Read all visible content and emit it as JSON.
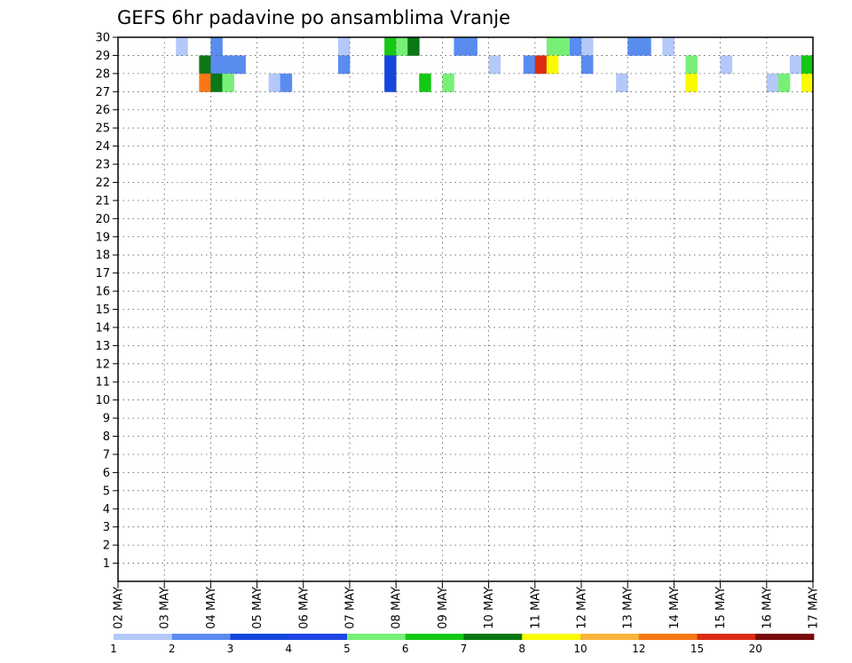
{
  "chart_data": {
    "type": "heatmap",
    "title": "GEFS 6hr padavine po ansamblima Vranje",
    "xlabel": "",
    "ylabel": "",
    "x_tick_labels": [
      "02 MAY",
      "03 MAY",
      "04 MAY",
      "05 MAY",
      "06 MAY",
      "07 MAY",
      "08 MAY",
      "09 MAY",
      "10 MAY",
      "11 MAY",
      "12 MAY",
      "13 MAY",
      "14 MAY",
      "15 MAY",
      "16 MAY",
      "17 MAY"
    ],
    "y_tick_labels": [
      "1",
      "2",
      "3",
      "4",
      "5",
      "6",
      "7",
      "8",
      "9",
      "10",
      "11",
      "12",
      "13",
      "14",
      "15",
      "16",
      "17",
      "18",
      "19",
      "20",
      "21",
      "22",
      "23",
      "24",
      "25",
      "26",
      "27",
      "28",
      "29",
      "30"
    ],
    "xlim": [
      0,
      60
    ],
    "ylim": [
      0,
      30
    ],
    "grid": true,
    "colorbar": {
      "position": "bottom",
      "levels": [
        "1",
        "2",
        "3",
        "4",
        "5",
        "6",
        "7",
        "8",
        "10",
        "12",
        "15",
        "20"
      ],
      "colors": [
        "#b4c8fa",
        "#5a8cf0",
        "#1446dc",
        "#1e46e6",
        "#78f078",
        "#14c814",
        "#0a7814",
        "#fafa00",
        "#fab43c",
        "#fa7814",
        "#dc2d14",
        "#780a0a"
      ]
    },
    "cell_note": "columns 0-59 are 6-hour steps starting 02 MAY 00Z; rows 1-30 are ensemble members; value is precipitation class index 1-12 (0 = below 1)",
    "columns": [
      "c0",
      "c1",
      "c2",
      "c3",
      "c4",
      "c5",
      "c6",
      "c7",
      "c8",
      "c9",
      "c10",
      "c11",
      "c12",
      "c13",
      "c14",
      "c15",
      "c16",
      "c17",
      "c18",
      "c19",
      "c20",
      "c21",
      "c22",
      "c23",
      "c24",
      "c25",
      "c26",
      "c27",
      "c28",
      "c29",
      "c30",
      "c31",
      "c32",
      "c33",
      "c34",
      "c35",
      "c36",
      "c37",
      "c38",
      "c39",
      "c40",
      "c41",
      "c42",
      "c43",
      "c44",
      "c45",
      "c46",
      "c47",
      "c48",
      "c49",
      "c50",
      "c51",
      "c52",
      "c53",
      "c54",
      "c55",
      "c56",
      "c57",
      "c58",
      "c59"
    ],
    "members": [
      {
        "m": 30,
        "v": [
          0,
          0,
          0,
          0,
          0,
          1,
          0,
          0,
          2,
          0,
          0,
          0,
          0,
          0,
          0,
          0,
          0,
          0,
          0,
          1,
          0,
          0,
          0,
          6,
          5,
          7,
          0,
          0,
          0,
          2,
          2,
          0,
          0,
          0,
          0,
          0,
          0,
          5,
          5,
          2,
          1,
          0,
          0,
          0,
          2,
          2,
          0,
          1,
          0,
          0,
          0,
          0,
          0,
          0,
          0,
          0,
          0,
          0,
          0,
          0
        ]
      },
      {
        "m": 29,
        "v": [
          0,
          0,
          0,
          0,
          0,
          0,
          0,
          7,
          2,
          2,
          2,
          0,
          0,
          0,
          0,
          0,
          0,
          0,
          0,
          2,
          0,
          0,
          0,
          3,
          0,
          0,
          0,
          0,
          0,
          0,
          0,
          0,
          1,
          0,
          0,
          2,
          11,
          8,
          0,
          0,
          2,
          0,
          0,
          0,
          0,
          0,
          0,
          0,
          0,
          5,
          0,
          0,
          1,
          0,
          0,
          0,
          0,
          0,
          1,
          6
        ]
      },
      {
        "m": 28,
        "v": [
          0,
          0,
          0,
          0,
          0,
          0,
          0,
          10,
          7,
          5,
          0,
          0,
          0,
          1,
          2,
          0,
          0,
          0,
          0,
          0,
          0,
          0,
          0,
          3,
          0,
          0,
          6,
          0,
          5,
          0,
          0,
          0,
          0,
          0,
          0,
          0,
          0,
          0,
          0,
          0,
          0,
          0,
          0,
          1,
          0,
          0,
          0,
          0,
          0,
          8,
          0,
          0,
          0,
          0,
          0,
          0,
          1,
          5,
          0,
          8
        ]
      }
    ]
  }
}
